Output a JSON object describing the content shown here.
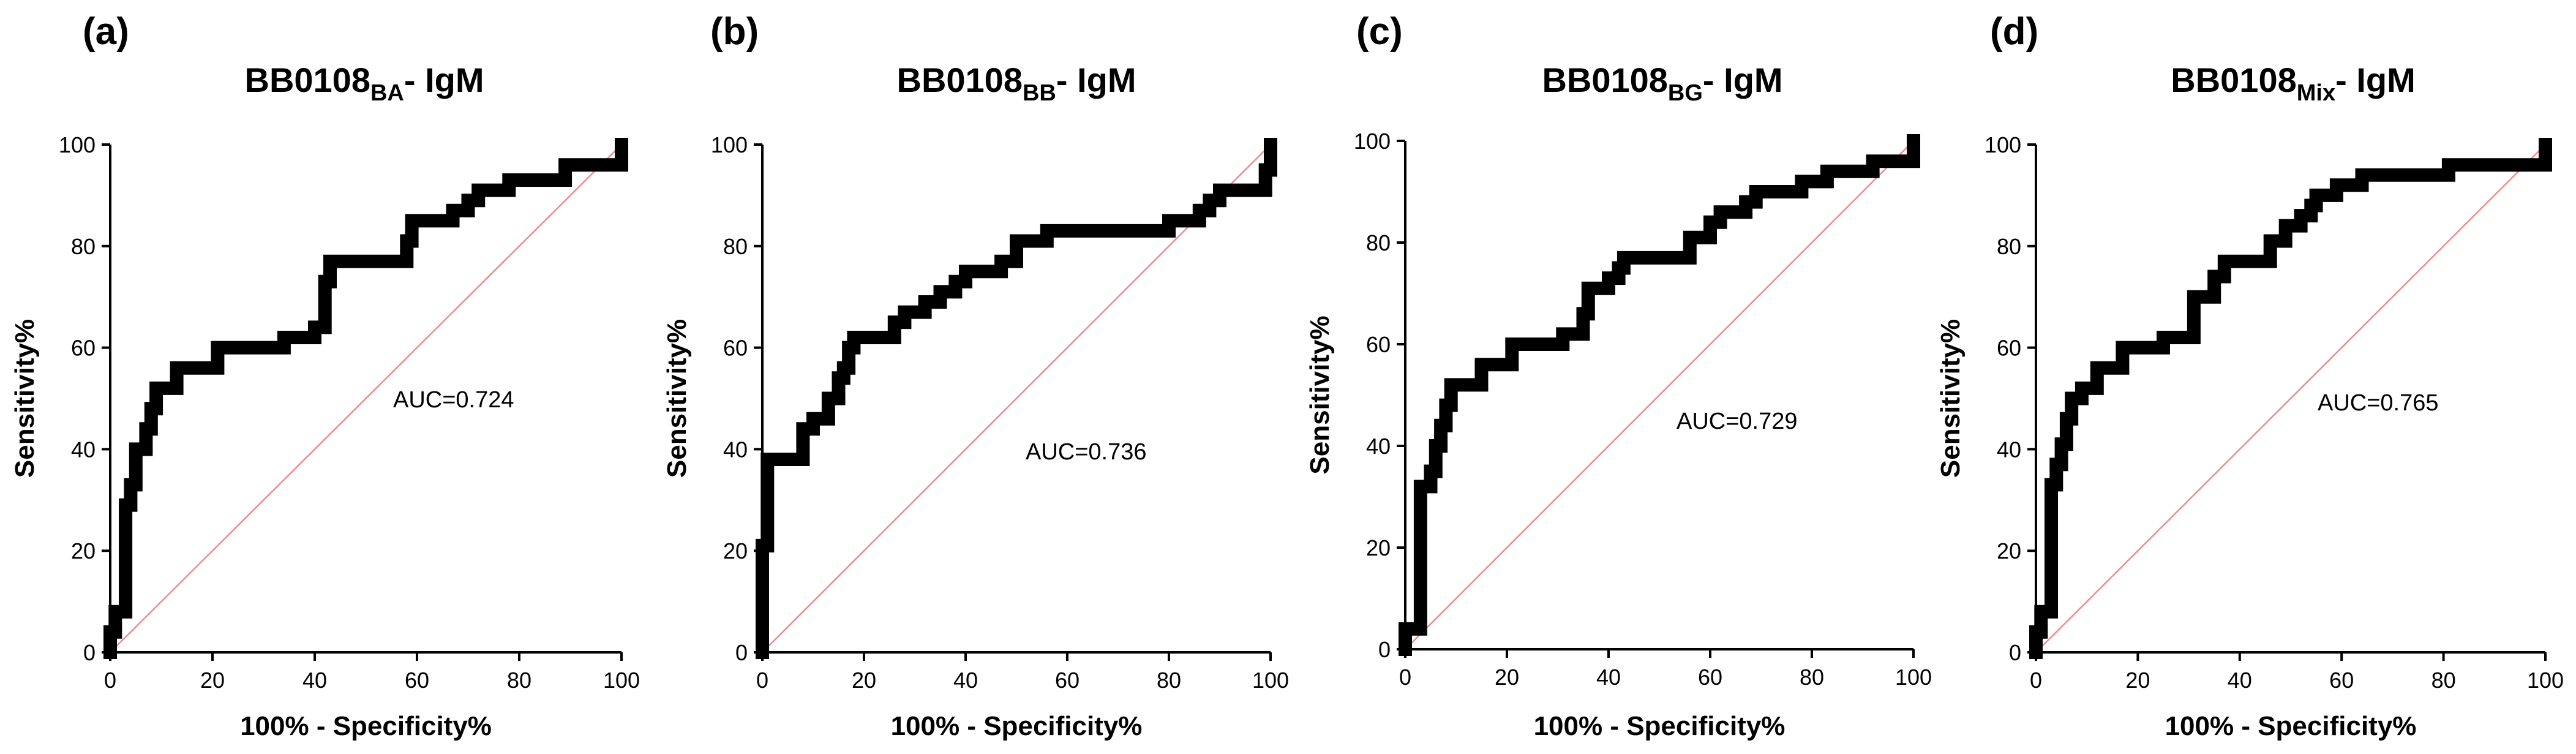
{
  "chart_data": [
    {
      "type": "line",
      "panel_label": "(a)",
      "title": "BB0108",
      "title_subscript": "BA",
      "title_suffix": "- IgM",
      "xlabel": "100% - Specificity%",
      "ylabel": "Sensitivity%",
      "xlim": [
        0,
        100
      ],
      "ylim": [
        0,
        100
      ],
      "xticks": [
        "0",
        "20",
        "40",
        "60",
        "80",
        "100"
      ],
      "yticks": [
        "0",
        "20",
        "40",
        "60",
        "80",
        "100"
      ],
      "annotation": "AUC=0.724",
      "series": [
        {
          "name": "ROC curve",
          "points": [
            [
              0,
              0
            ],
            [
              0,
              4
            ],
            [
              1,
              4
            ],
            [
              1,
              8
            ],
            [
              3,
              8
            ],
            [
              3,
              29
            ],
            [
              4,
              29
            ],
            [
              4,
              33
            ],
            [
              5,
              33
            ],
            [
              5,
              40
            ],
            [
              7,
              40
            ],
            [
              7,
              44
            ],
            [
              8,
              44
            ],
            [
              8,
              48
            ],
            [
              9,
              48
            ],
            [
              9,
              52
            ],
            [
              13,
              52
            ],
            [
              13,
              56
            ],
            [
              21,
              56
            ],
            [
              21,
              60
            ],
            [
              34,
              60
            ],
            [
              34,
              62
            ],
            [
              40,
              62
            ],
            [
              40,
              64
            ],
            [
              42,
              64
            ],
            [
              42,
              73
            ],
            [
              43,
              73
            ],
            [
              43,
              77
            ],
            [
              58,
              77
            ],
            [
              58,
              81
            ],
            [
              59,
              81
            ],
            [
              59,
              85
            ],
            [
              67,
              85
            ],
            [
              67,
              87
            ],
            [
              70,
              87
            ],
            [
              70,
              89
            ],
            [
              72,
              89
            ],
            [
              72,
              91
            ],
            [
              78,
              91
            ],
            [
              78,
              93
            ],
            [
              89,
              93
            ],
            [
              89,
              96
            ],
            [
              100,
              96
            ],
            [
              100,
              100
            ]
          ]
        },
        {
          "name": "Reference",
          "points": [
            [
              0,
              0
            ],
            [
              100,
              100
            ]
          ]
        }
      ]
    },
    {
      "type": "line",
      "panel_label": "(b)",
      "title": "BB0108",
      "title_subscript": "BB",
      "title_suffix": "- IgM",
      "xlabel": "100% - Specificity%",
      "ylabel": "Sensitivity%",
      "xlim": [
        0,
        100
      ],
      "ylim": [
        0,
        100
      ],
      "xticks": [
        "0",
        "20",
        "40",
        "60",
        "80",
        "100"
      ],
      "yticks": [
        "0",
        "20",
        "40",
        "60",
        "80",
        "100"
      ],
      "annotation": "AUC=0.736",
      "series": [
        {
          "name": "ROC curve",
          "points": [
            [
              0,
              0
            ],
            [
              0,
              21
            ],
            [
              1,
              21
            ],
            [
              1,
              38
            ],
            [
              8,
              38
            ],
            [
              8,
              44
            ],
            [
              10,
              44
            ],
            [
              10,
              46
            ],
            [
              13,
              46
            ],
            [
              13,
              50
            ],
            [
              15,
              50
            ],
            [
              15,
              54
            ],
            [
              16,
              54
            ],
            [
              16,
              56
            ],
            [
              17,
              56
            ],
            [
              17,
              60
            ],
            [
              18,
              60
            ],
            [
              18,
              62
            ],
            [
              26,
              62
            ],
            [
              26,
              65
            ],
            [
              28,
              65
            ],
            [
              28,
              67
            ],
            [
              32,
              67
            ],
            [
              32,
              69
            ],
            [
              35,
              69
            ],
            [
              35,
              71
            ],
            [
              38,
              71
            ],
            [
              38,
              73
            ],
            [
              40,
              73
            ],
            [
              40,
              75
            ],
            [
              47,
              75
            ],
            [
              47,
              77
            ],
            [
              50,
              77
            ],
            [
              50,
              81
            ],
            [
              56,
              81
            ],
            [
              56,
              83
            ],
            [
              80,
              83
            ],
            [
              80,
              85
            ],
            [
              86,
              85
            ],
            [
              86,
              87
            ],
            [
              88,
              87
            ],
            [
              88,
              89
            ],
            [
              90,
              89
            ],
            [
              90,
              91
            ],
            [
              99,
              91
            ],
            [
              99,
              95
            ],
            [
              100,
              95
            ],
            [
              100,
              100
            ]
          ]
        },
        {
          "name": "Reference",
          "points": [
            [
              0,
              0
            ],
            [
              100,
              100
            ]
          ]
        }
      ]
    },
    {
      "type": "line",
      "panel_label": "(c)",
      "title": "BB0108",
      "title_subscript": "BG",
      "title_suffix": "- IgM",
      "xlabel": "100% - Specificity%",
      "ylabel": "Sensitivity%",
      "xlim": [
        0,
        100
      ],
      "ylim": [
        0,
        100
      ],
      "xticks": [
        "0",
        "20",
        "40",
        "60",
        "80",
        "100"
      ],
      "yticks": [
        "0",
        "20",
        "40",
        "60",
        "80",
        "100"
      ],
      "annotation": "AUC=0.729",
      "series": [
        {
          "name": "ROC curve",
          "points": [
            [
              0,
              0
            ],
            [
              0,
              4
            ],
            [
              3,
              4
            ],
            [
              3,
              32
            ],
            [
              5,
              32
            ],
            [
              5,
              35
            ],
            [
              6,
              35
            ],
            [
              6,
              40
            ],
            [
              7,
              40
            ],
            [
              7,
              44
            ],
            [
              8,
              44
            ],
            [
              8,
              48
            ],
            [
              9,
              48
            ],
            [
              9,
              52
            ],
            [
              15,
              52
            ],
            [
              15,
              56
            ],
            [
              21,
              56
            ],
            [
              21,
              60
            ],
            [
              31,
              60
            ],
            [
              31,
              62
            ],
            [
              35,
              62
            ],
            [
              35,
              66
            ],
            [
              36,
              66
            ],
            [
              36,
              71
            ],
            [
              40,
              71
            ],
            [
              40,
              73
            ],
            [
              42,
              73
            ],
            [
              42,
              75
            ],
            [
              43,
              75
            ],
            [
              43,
              77
            ],
            [
              56,
              77
            ],
            [
              56,
              81
            ],
            [
              60,
              81
            ],
            [
              60,
              84
            ],
            [
              62,
              84
            ],
            [
              62,
              86
            ],
            [
              67,
              86
            ],
            [
              67,
              88
            ],
            [
              69,
              88
            ],
            [
              69,
              90
            ],
            [
              78,
              90
            ],
            [
              78,
              92
            ],
            [
              83,
              92
            ],
            [
              83,
              94
            ],
            [
              92,
              94
            ],
            [
              92,
              96
            ],
            [
              100,
              96
            ],
            [
              100,
              100
            ]
          ]
        },
        {
          "name": "Reference",
          "points": [
            [
              0,
              0
            ],
            [
              100,
              100
            ]
          ]
        }
      ]
    },
    {
      "type": "line",
      "panel_label": "(d)",
      "title": "BB0108",
      "title_subscript": "Mix",
      "title_suffix": "- IgM",
      "xlabel": "100% - Specificity%",
      "ylabel": "Sensitivity%",
      "xlim": [
        0,
        100
      ],
      "ylim": [
        0,
        100
      ],
      "xticks": [
        "0",
        "20",
        "40",
        "60",
        "80",
        "100"
      ],
      "yticks": [
        "0",
        "20",
        "40",
        "60",
        "80",
        "100"
      ],
      "annotation": "AUC=0.765",
      "series": [
        {
          "name": "ROC curve",
          "points": [
            [
              0,
              0
            ],
            [
              0,
              4
            ],
            [
              1,
              4
            ],
            [
              1,
              8
            ],
            [
              3,
              8
            ],
            [
              3,
              33
            ],
            [
              4,
              33
            ],
            [
              4,
              37
            ],
            [
              5,
              37
            ],
            [
              5,
              41
            ],
            [
              6,
              41
            ],
            [
              6,
              46
            ],
            [
              7,
              46
            ],
            [
              7,
              50
            ],
            [
              9,
              50
            ],
            [
              9,
              52
            ],
            [
              12,
              52
            ],
            [
              12,
              56
            ],
            [
              17,
              56
            ],
            [
              17,
              60
            ],
            [
              25,
              60
            ],
            [
              25,
              62
            ],
            [
              31,
              62
            ],
            [
              31,
              70
            ],
            [
              35,
              70
            ],
            [
              35,
              74
            ],
            [
              37,
              74
            ],
            [
              37,
              77
            ],
            [
              46,
              77
            ],
            [
              46,
              81
            ],
            [
              49,
              81
            ],
            [
              49,
              84
            ],
            [
              52,
              84
            ],
            [
              52,
              86
            ],
            [
              54,
              86
            ],
            [
              54,
              88
            ],
            [
              55,
              88
            ],
            [
              55,
              90
            ],
            [
              59,
              90
            ],
            [
              59,
              92
            ],
            [
              64,
              92
            ],
            [
              64,
              94
            ],
            [
              81,
              94
            ],
            [
              81,
              96
            ],
            [
              100,
              96
            ],
            [
              100,
              100
            ]
          ]
        },
        {
          "name": "Reference",
          "points": [
            [
              0,
              0
            ],
            [
              100,
              100
            ]
          ]
        }
      ]
    }
  ]
}
